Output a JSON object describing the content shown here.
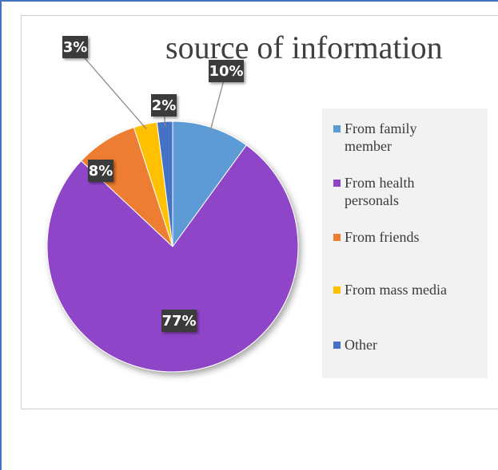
{
  "chart_data": {
    "type": "pie",
    "title": "source of information",
    "categories": [
      "From family member",
      "From health personals",
      "From friends",
      "From mass media",
      "Other"
    ],
    "values": [
      10,
      77,
      8,
      3,
      2
    ],
    "data_labels": [
      "10%",
      "77%",
      "8%",
      "3%",
      "2%"
    ],
    "colors": [
      "#5b9bd5",
      "#8e44c8",
      "#ed7d31",
      "#ffc000",
      "#4472c4"
    ],
    "legend_position": "right"
  }
}
